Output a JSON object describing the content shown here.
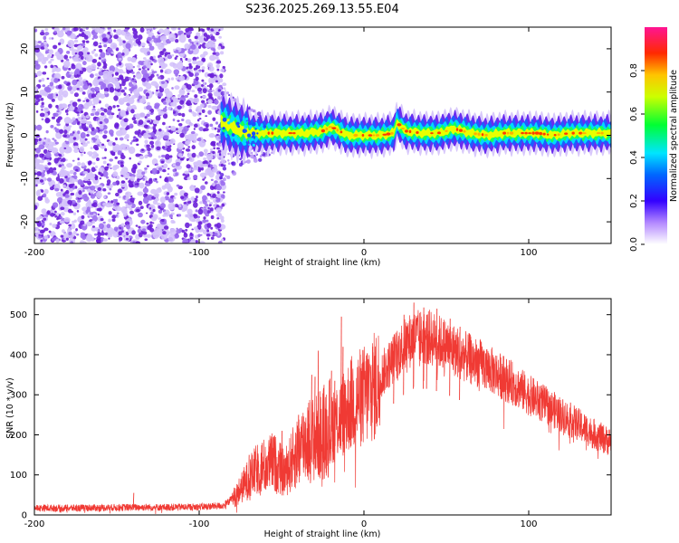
{
  "title": "S236.2025.269.13.55.E04",
  "chart_data": [
    {
      "type": "heatmap",
      "name": "spectrogram",
      "xlabel": "Height of straight line (km)",
      "ylabel": "Frequency (Hz)",
      "xlim": [
        -200,
        150
      ],
      "ylim": [
        -25,
        25
      ],
      "xticks": [
        "-200",
        "-100",
        "0",
        "100"
      ],
      "xtick_values": [
        -200,
        -100,
        0,
        100
      ],
      "yticks": [
        "-20",
        "-10",
        "0",
        "10",
        "20"
      ],
      "ytick_values": [
        -20,
        -10,
        0,
        10,
        20
      ],
      "noise_region_km": [
        -200,
        -88
      ],
      "transition_region_km": [
        -88,
        -45
      ],
      "tone_track": {
        "height_km": [
          -85,
          -75,
          -65,
          -55,
          -45,
          -35,
          -25,
          -20,
          -10,
          0,
          10,
          18,
          20,
          25,
          35,
          45,
          55,
          65,
          75,
          85,
          95,
          105,
          115,
          125,
          135,
          150
        ],
        "frequency_hz": [
          3,
          1,
          0.5,
          0.5,
          0.5,
          0.5,
          1,
          2,
          0,
          0,
          0,
          0.5,
          3,
          1,
          0.5,
          0.5,
          1.5,
          0.5,
          0,
          0.5,
          0.5,
          0.5,
          0,
          0.5,
          0.5,
          0.5
        ]
      },
      "colorbar": {
        "label": "Normalized spectral amplitude",
        "range": [
          0,
          1
        ],
        "ticks": [
          "0.0",
          "0.2",
          "0.4",
          "0.6",
          "0.8"
        ],
        "tick_values": [
          0.0,
          0.2,
          0.4,
          0.6,
          0.8
        ]
      }
    },
    {
      "type": "line",
      "name": "snr",
      "xlabel": "Height of straight line (km)",
      "ylabel": "SNR (10 * v/v)",
      "xlim": [
        -200,
        150
      ],
      "ylim": [
        0,
        540
      ],
      "xticks": [
        "-200",
        "-100",
        "0",
        "100"
      ],
      "xtick_values": [
        -200,
        -100,
        0,
        100
      ],
      "yticks": [
        "0",
        "100",
        "200",
        "300",
        "400",
        "500"
      ],
      "ytick_values": [
        0,
        100,
        200,
        300,
        400,
        500
      ],
      "series": [
        {
          "name": "SNR",
          "color": "#f03a34",
          "x": [
            -200,
            -180,
            -160,
            -140,
            -120,
            -100,
            -85,
            -78,
            -72,
            -65,
            -55,
            -48,
            -40,
            -35,
            -30,
            -22,
            -15,
            -8,
            0,
            8,
            15,
            22,
            30,
            40,
            50,
            60,
            70,
            80,
            90,
            100,
            110,
            120,
            130,
            140,
            150
          ],
          "y": [
            18,
            18,
            19,
            20,
            20,
            21,
            24,
            50,
            85,
            120,
            140,
            110,
            170,
            200,
            200,
            230,
            250,
            290,
            310,
            340,
            380,
            420,
            450,
            450,
            430,
            405,
            385,
            360,
            335,
            305,
            280,
            255,
            230,
            205,
            185
          ]
        }
      ],
      "spikes": {
        "x": [
          -140,
          -82,
          -70,
          -62,
          -50,
          -40,
          -32,
          -30,
          -28,
          -21,
          -20,
          -18,
          -14,
          -13,
          5,
          18,
          24,
          30,
          36,
          38,
          44,
          52,
          58
        ],
        "y": [
          55,
          40,
          150,
          180,
          210,
          250,
          350,
          345,
          410,
          340,
          360,
          335,
          495,
          420,
          420,
          450,
          500,
          530,
          518,
          500,
          515,
          490,
          470
        ]
      }
    }
  ]
}
